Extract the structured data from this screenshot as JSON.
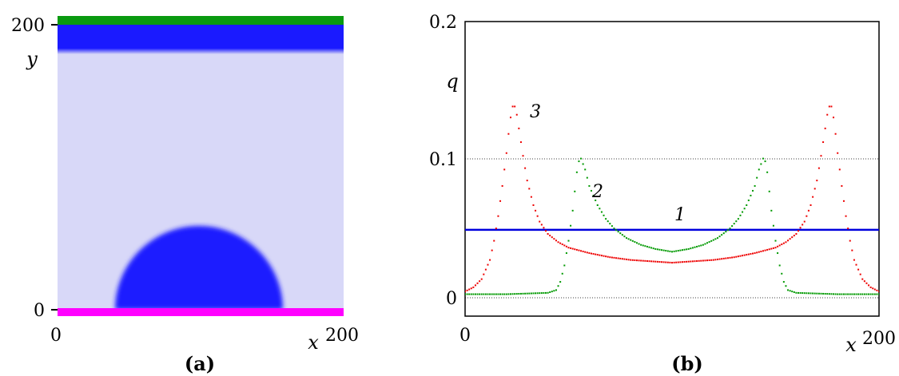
{
  "chart_data": [
    {
      "type": "heatmap",
      "panel": "(a)",
      "xlabel": "x",
      "ylabel": "y",
      "xlim": [
        0,
        200
      ],
      "ylim": [
        0,
        200
      ],
      "x_ticks": [
        "0",
        "200"
      ],
      "y_ticks": [
        "0",
        "200"
      ],
      "grid": false,
      "colors": {
        "background": "#d8d8f8",
        "droplet": "#1a1aff",
        "top_band": "#1a1aff",
        "top_wall": "#0a9a10",
        "bottom_wall": "#ff00ff"
      },
      "regions": [
        {
          "label": "bottom-wall",
          "x": [
            0,
            200
          ],
          "y": [
            -2,
            0
          ]
        },
        {
          "label": "droplet",
          "center_x": 100,
          "center_y": 0,
          "radius": 58
        },
        {
          "label": "top-band",
          "x": [
            0,
            200
          ],
          "y": [
            180,
            198
          ]
        },
        {
          "label": "top-wall",
          "x": [
            0,
            200
          ],
          "y": [
            198,
            204
          ]
        }
      ]
    },
    {
      "type": "scatter",
      "panel": "(b)",
      "xlabel": "x",
      "ylabel": "q",
      "xlim": [
        0,
        200
      ],
      "ylim": [
        -0.015,
        0.2
      ],
      "x_ticks": [
        "0",
        "200"
      ],
      "y_ticks": [
        "0",
        "0.1",
        "0.2"
      ],
      "grid_lines_y": [
        0,
        0.1
      ],
      "series": [
        {
          "name": "1",
          "color": "#0000dd",
          "style": "line",
          "x": [
            0,
            200
          ],
          "y": [
            0.048,
            0.048
          ]
        },
        {
          "name": "2",
          "color": "#009900",
          "style": "points",
          "x": [
            0,
            20,
            40,
            44,
            46,
            48,
            50,
            52,
            53,
            54,
            55,
            56,
            58,
            60,
            64,
            68,
            72,
            78,
            85,
            92,
            100,
            108,
            115,
            122,
            128,
            132,
            136,
            140,
            142,
            144,
            145,
            146,
            147,
            148,
            150,
            152,
            154,
            156,
            160,
            180,
            200
          ],
          "y": [
            0.001,
            0.001,
            0.002,
            0.004,
            0.01,
            0.022,
            0.04,
            0.062,
            0.076,
            0.09,
            0.098,
            0.1,
            0.092,
            0.08,
            0.066,
            0.056,
            0.049,
            0.042,
            0.037,
            0.034,
            0.032,
            0.034,
            0.037,
            0.042,
            0.049,
            0.056,
            0.066,
            0.08,
            0.092,
            0.1,
            0.098,
            0.09,
            0.076,
            0.062,
            0.04,
            0.022,
            0.01,
            0.004,
            0.002,
            0.001,
            0.001
          ]
        },
        {
          "name": "3",
          "color": "#ee0000",
          "style": "points",
          "x": [
            0,
            4,
            8,
            12,
            14,
            16,
            18,
            20,
            21,
            22,
            23,
            24,
            25,
            26,
            28,
            30,
            33,
            36,
            40,
            45,
            50,
            60,
            70,
            80,
            90,
            100,
            110,
            120,
            130,
            140,
            150,
            155,
            160,
            164,
            167,
            170,
            172,
            174,
            175,
            176,
            177,
            178,
            179,
            180,
            182,
            184,
            186,
            188,
            192,
            196,
            200
          ],
          "y": [
            0.003,
            0.006,
            0.012,
            0.026,
            0.04,
            0.058,
            0.08,
            0.104,
            0.118,
            0.13,
            0.138,
            0.138,
            0.132,
            0.122,
            0.102,
            0.084,
            0.066,
            0.054,
            0.045,
            0.039,
            0.035,
            0.031,
            0.028,
            0.026,
            0.025,
            0.024,
            0.025,
            0.026,
            0.028,
            0.031,
            0.035,
            0.039,
            0.045,
            0.054,
            0.066,
            0.084,
            0.102,
            0.122,
            0.132,
            0.138,
            0.138,
            0.13,
            0.118,
            0.104,
            0.08,
            0.058,
            0.04,
            0.026,
            0.012,
            0.006,
            0.003
          ]
        }
      ],
      "annotations": [
        "1",
        "2",
        "3"
      ]
    }
  ],
  "panel_a": {
    "caption": "(a)",
    "xlabel": "x",
    "ylabel": "y",
    "x_tick_0": "0",
    "x_tick_200": "200",
    "y_tick_0": "0",
    "y_tick_200": "200"
  },
  "panel_b": {
    "caption": "(b)",
    "xlabel": "x",
    "ylabel": "q",
    "x_tick_0": "0",
    "x_tick_200": "200",
    "y_tick_0": "0",
    "y_tick_01": "0.1",
    "y_tick_02": "0.2",
    "label_1": "1",
    "label_2": "2",
    "label_3": "3"
  }
}
